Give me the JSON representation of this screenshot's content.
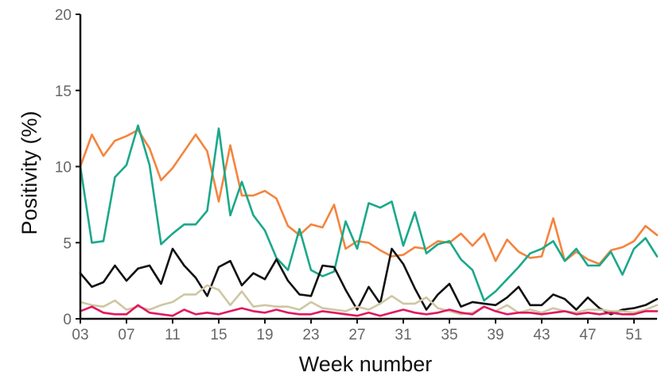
{
  "chart_data": {
    "type": "line",
    "xlabel": "Week number",
    "ylabel": "Positivity (%)",
    "xlim": [
      3,
      53
    ],
    "ylim": [
      0,
      20
    ],
    "x_ticks": [
      "03",
      "07",
      "11",
      "15",
      "19",
      "23",
      "27",
      "31",
      "35",
      "39",
      "43",
      "47",
      "51"
    ],
    "x_tick_values": [
      3,
      7,
      11,
      15,
      19,
      23,
      27,
      31,
      35,
      39,
      43,
      47,
      51
    ],
    "y_ticks": [
      "0",
      "5",
      "10",
      "15",
      "20"
    ],
    "y_tick_values": [
      0,
      5,
      10,
      15,
      20
    ],
    "grid": false,
    "legend": "none",
    "x": [
      3,
      4,
      5,
      6,
      7,
      8,
      9,
      10,
      11,
      12,
      13,
      14,
      15,
      16,
      17,
      18,
      19,
      20,
      21,
      22,
      23,
      24,
      25,
      26,
      27,
      28,
      29,
      30,
      31,
      32,
      33,
      34,
      35,
      36,
      37,
      38,
      39,
      40,
      41,
      42,
      43,
      44,
      45,
      46,
      47,
      48,
      49,
      50,
      51,
      52,
      53
    ],
    "series": [
      {
        "color": "#f4843f",
        "values": [
          10.0,
          12.1,
          10.7,
          11.7,
          12.0,
          12.4,
          11.2,
          9.1,
          9.9,
          11.0,
          12.1,
          11.0,
          7.7,
          11.4,
          8.1,
          8.1,
          8.4,
          7.9,
          6.1,
          5.5,
          6.2,
          6.0,
          7.5,
          4.6,
          5.1,
          5.0,
          4.5,
          4.1,
          4.2,
          4.7,
          4.6,
          5.1,
          5.0,
          5.6,
          4.8,
          5.6,
          3.8,
          5.2,
          4.4,
          4.0,
          4.1,
          6.6,
          3.8,
          4.4,
          3.9,
          3.6,
          4.5,
          4.7,
          5.1,
          6.1,
          5.5
        ]
      },
      {
        "color": "#1ba88a",
        "values": [
          10.0,
          5.0,
          5.1,
          9.3,
          10.1,
          12.7,
          10.1,
          4.9,
          5.6,
          6.2,
          6.2,
          7.1,
          12.5,
          6.8,
          9.0,
          6.8,
          5.8,
          4.0,
          3.2,
          5.9,
          3.2,
          2.8,
          3.1,
          6.4,
          4.6,
          7.6,
          7.3,
          7.7,
          4.8,
          7.0,
          4.3,
          4.9,
          5.1,
          3.9,
          3.2,
          1.2,
          1.8,
          2.6,
          3.4,
          4.3,
          4.6,
          5.1,
          3.8,
          4.6,
          3.5,
          3.5,
          4.4,
          2.9,
          4.6,
          5.3,
          4.1
        ]
      },
      {
        "color": "#111111",
        "values": [
          3.0,
          2.1,
          2.4,
          3.5,
          2.5,
          3.3,
          3.5,
          2.3,
          4.6,
          3.5,
          2.7,
          1.5,
          3.4,
          3.8,
          2.2,
          3.0,
          2.6,
          3.9,
          2.5,
          1.6,
          1.5,
          3.5,
          3.4,
          1.9,
          0.6,
          2.1,
          1.0,
          4.6,
          3.6,
          2.0,
          0.6,
          1.6,
          2.3,
          0.8,
          1.1,
          1.0,
          0.9,
          1.4,
          2.1,
          0.9,
          0.9,
          1.6,
          1.3,
          0.6,
          1.4,
          0.7,
          0.3,
          0.6,
          0.7,
          0.9,
          1.3
        ]
      },
      {
        "color": "#cfc6a3",
        "values": [
          1.1,
          0.9,
          0.8,
          1.2,
          0.6,
          0.8,
          0.6,
          0.9,
          1.1,
          1.6,
          1.6,
          2.2,
          1.9,
          0.9,
          1.8,
          0.8,
          0.9,
          0.8,
          0.8,
          0.6,
          1.1,
          0.7,
          0.6,
          0.5,
          0.8,
          0.6,
          1.0,
          1.5,
          1.0,
          1.0,
          1.4,
          0.7,
          0.5,
          0.3,
          0.4,
          0.8,
          0.5,
          0.9,
          0.4,
          0.6,
          0.4,
          0.7,
          0.5,
          0.4,
          0.6,
          0.6,
          0.5,
          0.5,
          0.4,
          0.6,
          0.9
        ]
      },
      {
        "color": "#e0195e",
        "values": [
          0.5,
          0.8,
          0.4,
          0.3,
          0.3,
          0.9,
          0.4,
          0.3,
          0.2,
          0.6,
          0.3,
          0.4,
          0.3,
          0.5,
          0.7,
          0.5,
          0.4,
          0.6,
          0.4,
          0.3,
          0.3,
          0.5,
          0.4,
          0.3,
          0.2,
          0.4,
          0.2,
          0.4,
          0.6,
          0.4,
          0.3,
          0.4,
          0.6,
          0.4,
          0.3,
          0.8,
          0.5,
          0.3,
          0.4,
          0.4,
          0.3,
          0.4,
          0.5,
          0.3,
          0.4,
          0.3,
          0.4,
          0.3,
          0.3,
          0.5,
          0.5
        ]
      }
    ]
  }
}
